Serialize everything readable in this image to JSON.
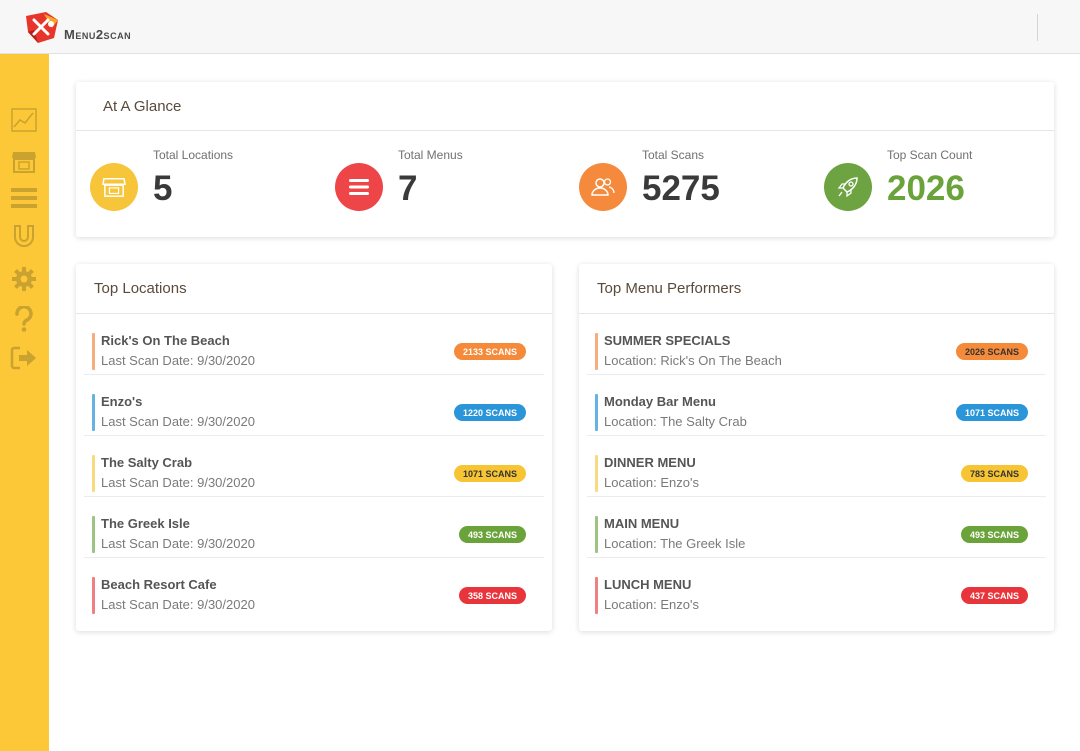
{
  "header": {
    "logo_text": "Menu2scan"
  },
  "sidebar": {
    "items": [
      {
        "icon": "chart-line-icon"
      },
      {
        "icon": "store-icon"
      },
      {
        "icon": "menu-bars-icon"
      },
      {
        "icon": "magnet-icon"
      },
      {
        "icon": "gear-icon"
      },
      {
        "icon": "question-icon"
      },
      {
        "icon": "sign-out-icon"
      }
    ]
  },
  "glance": {
    "title": "At A Glance",
    "stats": [
      {
        "label": "Total Locations",
        "value": "5",
        "icon": "store-icon",
        "color": "#f7c539"
      },
      {
        "label": "Total Menus",
        "value": "7",
        "icon": "menu-bars-icon",
        "color": "#ee4548"
      },
      {
        "label": "Total Scans",
        "value": "5275",
        "icon": "users-icon",
        "color": "#f68a3c"
      },
      {
        "label": "Top Scan Count",
        "value": "2026",
        "icon": "rocket-icon",
        "color": "#6da340",
        "value_color": "#6aa33a"
      }
    ]
  },
  "top_locations": {
    "title": "Top Locations",
    "rows": [
      {
        "title": "Rick's On The Beach",
        "sub": "Last Scan Date: 9/30/2020",
        "badge": "2133 SCANS",
        "color": "#f58a3a",
        "bar": "#f6ad7c"
      },
      {
        "title": "Enzo's",
        "sub": "Last Scan Date: 9/30/2020",
        "badge": "1220 SCANS",
        "color": "#2a95d9",
        "bar": "#66b2e2"
      },
      {
        "title": "The Salty Crab",
        "sub": "Last Scan Date: 9/30/2020",
        "badge": "1071 SCANS",
        "color": "#f7c434",
        "bar": "#f8da80",
        "badge_text": "#333"
      },
      {
        "title": "The Greek Isle",
        "sub": "Last Scan Date: 9/30/2020",
        "badge": "493 SCANS",
        "color": "#6aa33a",
        "bar": "#9cc482"
      },
      {
        "title": "Beach Resort Cafe",
        "sub": "Last Scan Date: 9/30/2020",
        "badge": "358 SCANS",
        "color": "#e8353b",
        "bar": "#ef8084"
      }
    ]
  },
  "top_menus": {
    "title": "Top Menu Performers",
    "rows": [
      {
        "title": "SUMMER SPECIALS",
        "sub": "Location: Rick's On The Beach",
        "badge": "2026 SCANS",
        "color": "#f58a3a",
        "bar": "#f6ad7c",
        "badge_text": "#333"
      },
      {
        "title": "Monday Bar Menu",
        "sub": "Location: The Salty Crab",
        "badge": "1071 SCANS",
        "color": "#2a95d9",
        "bar": "#66b2e2"
      },
      {
        "title": "DINNER MENU",
        "sub": "Location: Enzo's",
        "badge": "783 SCANS",
        "color": "#f7c434",
        "bar": "#f8da80",
        "badge_text": "#333"
      },
      {
        "title": "MAIN MENU",
        "sub": "Location: The Greek Isle",
        "badge": "493 SCANS",
        "color": "#6aa33a",
        "bar": "#9cc482"
      },
      {
        "title": "LUNCH MENU",
        "sub": "Location: Enzo's",
        "badge": "437 SCANS",
        "color": "#e8353b",
        "bar": "#ef8084"
      }
    ]
  }
}
